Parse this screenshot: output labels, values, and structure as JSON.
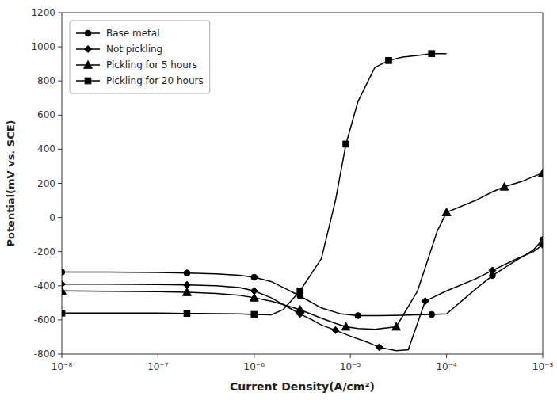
{
  "chart_data": {
    "type": "line",
    "xlabel": "Current Density(A/cm²)",
    "ylabel": "Potential(mV vs. SCE)",
    "log": "x",
    "grid": false,
    "legend": "upper left",
    "xlim": [
      1e-08,
      0.001
    ],
    "xticks": [
      {
        "value": 1e-08,
        "label": "10⁻⁸"
      },
      {
        "value": 1e-07,
        "label": "10⁻⁷"
      },
      {
        "value": 1e-06,
        "label": "10⁻⁶"
      },
      {
        "value": 1e-05,
        "label": "10⁻⁵"
      },
      {
        "value": 0.0001,
        "label": "10⁻⁴"
      },
      {
        "value": 0.001,
        "label": "10⁻³"
      }
    ],
    "ylim": [
      -800,
      1200
    ],
    "yticks": [
      -800,
      -600,
      -400,
      -200,
      0,
      200,
      400,
      600,
      800,
      1000,
      1200
    ],
    "series": [
      {
        "name": "Base metal",
        "color": "#000000",
        "marker": "circle",
        "x": [
          1e-08,
          3e-08,
          1e-07,
          2e-07,
          4e-07,
          7e-07,
          1e-06,
          1.5e-06,
          2e-06,
          3e-06,
          5e-06,
          8e-06,
          1.2e-05,
          2e-05,
          4e-05,
          7e-05,
          0.0001,
          0.0002,
          0.0003,
          0.0005,
          0.0008,
          0.001
        ],
        "values": [
          -320,
          -320,
          -322,
          -325,
          -330,
          -338,
          -350,
          -375,
          -410,
          -460,
          -530,
          -565,
          -575,
          -575,
          -572,
          -568,
          -565,
          -420,
          -340,
          -260,
          -190,
          -130
        ]
      },
      {
        "name": "Not pickling",
        "color": "#000000",
        "marker": "diamond",
        "x": [
          1e-08,
          3e-08,
          1e-07,
          2e-07,
          4e-07,
          7e-07,
          1e-06,
          1.5e-06,
          2e-06,
          3e-06,
          4e-06,
          5e-06,
          7e-06,
          1e-05,
          1.5e-05,
          2e-05,
          3e-05,
          4e-05,
          6e-05,
          0.0001,
          0.0002,
          0.0003,
          0.0005,
          0.0008,
          0.001
        ],
        "values": [
          -390,
          -391,
          -393,
          -395,
          -400,
          -410,
          -430,
          -470,
          -510,
          -565,
          -600,
          -630,
          -660,
          -695,
          -730,
          -760,
          -780,
          -775,
          -490,
          -430,
          -360,
          -310,
          -250,
          -200,
          -160
        ]
      },
      {
        "name": "Pickling for 5 hours",
        "color": "#000000",
        "marker": "triangle",
        "x": [
          1e-08,
          3e-08,
          1e-07,
          2e-07,
          4e-07,
          7e-07,
          1e-06,
          1.5e-06,
          2e-06,
          3e-06,
          5e-06,
          7e-06,
          9e-06,
          1.2e-05,
          1.8e-05,
          3e-05,
          5e-05,
          8e-05,
          0.0001,
          0.0002,
          0.0003,
          0.0004,
          0.0006,
          0.0008,
          0.001
        ],
        "values": [
          -430,
          -432,
          -435,
          -438,
          -445,
          -455,
          -470,
          -490,
          -510,
          -540,
          -590,
          -620,
          -640,
          -650,
          -655,
          -640,
          -430,
          -80,
          30,
          100,
          150,
          180,
          210,
          240,
          260
        ]
      },
      {
        "name": "Pickling for 20 hours",
        "color": "#000000",
        "marker": "square",
        "x": [
          1e-08,
          3e-08,
          1e-07,
          2e-07,
          4e-07,
          7e-07,
          1e-06,
          1.5e-06,
          2e-06,
          3e-06,
          5e-06,
          7e-06,
          9e-06,
          1.2e-05,
          1.8e-05,
          2.5e-05,
          3.5e-05,
          5e-05,
          7e-05,
          0.0001
        ],
        "values": [
          -560,
          -560,
          -560,
          -562,
          -563,
          -565,
          -568,
          -570,
          -540,
          -430,
          -240,
          100,
          430,
          680,
          880,
          920,
          940,
          950,
          960,
          960
        ]
      }
    ]
  }
}
